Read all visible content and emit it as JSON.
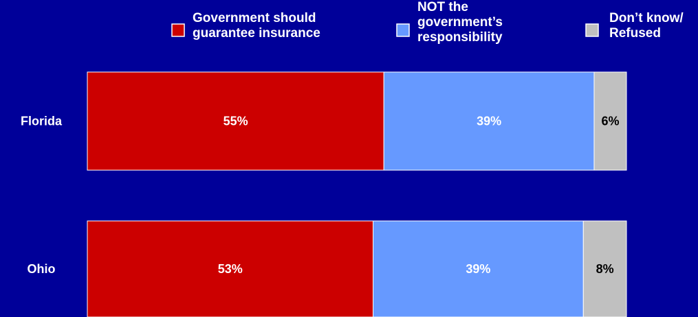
{
  "chart_data": {
    "type": "bar",
    "orientation": "horizontal",
    "stacked": true,
    "percent_stacked": true,
    "title": "",
    "xlabel": "",
    "ylabel": "",
    "grid": false,
    "legend_position": "top",
    "categories": [
      "Florida",
      "Ohio"
    ],
    "series": [
      {
        "name": "Government should guarantee insurance",
        "name_lines": [
          "Government should",
          "guarantee insurance"
        ],
        "values": [
          55,
          53
        ],
        "labels": [
          "55%",
          "53%"
        ],
        "color": "#cc0000",
        "label_color": "#ffffff"
      },
      {
        "name": "NOT the government’s responsibility",
        "name_lines": [
          "NOT the",
          "government’s",
          "responsibility"
        ],
        "values": [
          39,
          39
        ],
        "labels": [
          "39%",
          "39%"
        ],
        "color": "#6699ff",
        "label_color": "#ffffff"
      },
      {
        "name": "Don’t know/ Refused",
        "name_lines": [
          "Don’t know/",
          "Refused"
        ],
        "values": [
          6,
          8
        ],
        "labels": [
          "6%",
          "8%"
        ],
        "color": "#c0c0c0",
        "label_color": "#000000"
      }
    ]
  }
}
